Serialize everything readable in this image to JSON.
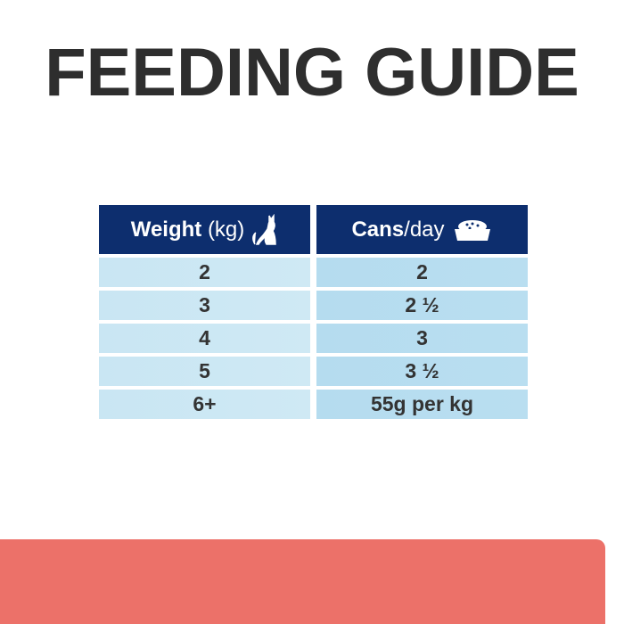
{
  "title": "FEEDING GUIDE",
  "table": {
    "headers": [
      {
        "bold": "Weight",
        "light": "(kg)",
        "icon": "cat-icon"
      },
      {
        "bold": "Cans",
        "light": "/day",
        "icon": "food-bowl-icon"
      }
    ],
    "weights": [
      "2",
      "3",
      "4",
      "5",
      "6+"
    ],
    "cans": [
      "2",
      "2 ½",
      "3",
      "3 ½",
      "55g per kg"
    ]
  },
  "colors": {
    "header": "#0d2e6e",
    "accent_block": "#ec7169",
    "text": "#2e2e2e"
  }
}
